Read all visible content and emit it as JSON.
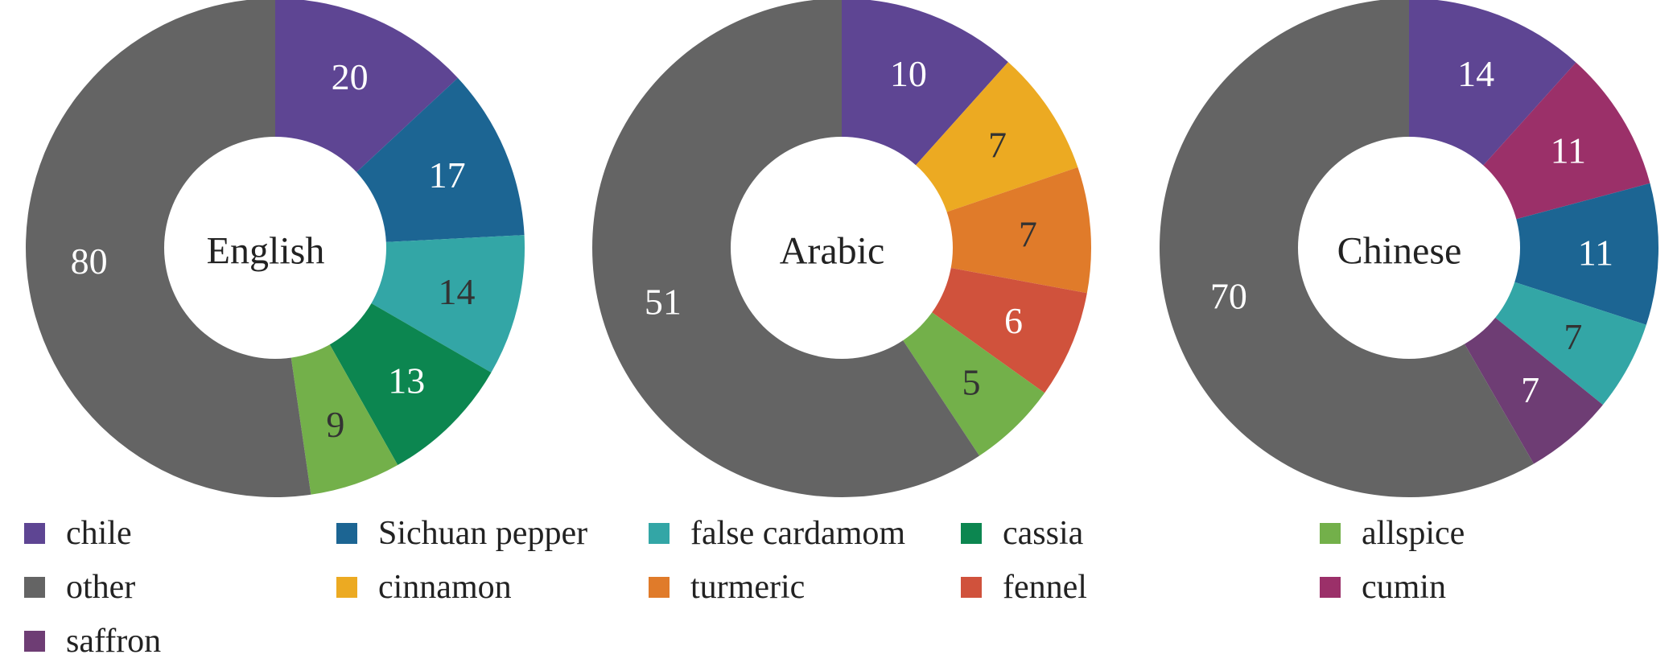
{
  "chart_data": {
    "type": "pie",
    "variant": "donut",
    "legend": {
      "placement": "bottom",
      "items": [
        {
          "name": "chile",
          "color": "#5e4593"
        },
        {
          "name": "Sichuan pepper",
          "color": "#1c6593"
        },
        {
          "name": "false cardamom",
          "color": "#33a6a6"
        },
        {
          "name": "cassia",
          "color": "#0c8650"
        },
        {
          "name": "allspice",
          "color": "#73b04a"
        },
        {
          "name": "other",
          "color": "#646464"
        },
        {
          "name": "cinnamon",
          "color": "#ecaa22"
        },
        {
          "name": "turmeric",
          "color": "#e07b2a"
        },
        {
          "name": "fennel",
          "color": "#d0523c"
        },
        {
          "name": "cumin",
          "color": "#9b3069"
        },
        {
          "name": "saffron",
          "color": "#6e3d74"
        }
      ]
    },
    "charts": [
      {
        "center_label": "English",
        "slices": [
          {
            "category": "chile",
            "value": 20,
            "label_color": "#ffffff"
          },
          {
            "category": "Sichuan pepper",
            "value": 17,
            "label_color": "#ffffff"
          },
          {
            "category": "false cardamom",
            "value": 14,
            "label_color": "#333333"
          },
          {
            "category": "cassia",
            "value": 13,
            "label_color": "#ffffff"
          },
          {
            "category": "allspice",
            "value": 9,
            "label_color": "#333333"
          },
          {
            "category": "other",
            "value": 80,
            "label_color": "#ffffff"
          }
        ]
      },
      {
        "center_label": "Arabic",
        "slices": [
          {
            "category": "chile",
            "value": 10,
            "label_color": "#ffffff"
          },
          {
            "category": "cinnamon",
            "value": 7,
            "label_color": "#333333"
          },
          {
            "category": "turmeric",
            "value": 7,
            "label_color": "#333333"
          },
          {
            "category": "fennel",
            "value": 6,
            "label_color": "#ffffff"
          },
          {
            "category": "allspice",
            "value": 5,
            "label_color": "#333333"
          },
          {
            "category": "other",
            "value": 51,
            "label_color": "#ffffff"
          }
        ]
      },
      {
        "center_label": "Chinese",
        "slices": [
          {
            "category": "chile",
            "value": 14,
            "label_color": "#ffffff"
          },
          {
            "category": "cumin",
            "value": 11,
            "label_color": "#ffffff"
          },
          {
            "category": "Sichuan pepper",
            "value": 11,
            "label_color": "#ffffff"
          },
          {
            "category": "false cardamom",
            "value": 7,
            "label_color": "#333333"
          },
          {
            "category": "saffron",
            "value": 7,
            "label_color": "#ffffff"
          },
          {
            "category": "other",
            "value": 70,
            "label_color": "#ffffff"
          }
        ]
      }
    ]
  }
}
